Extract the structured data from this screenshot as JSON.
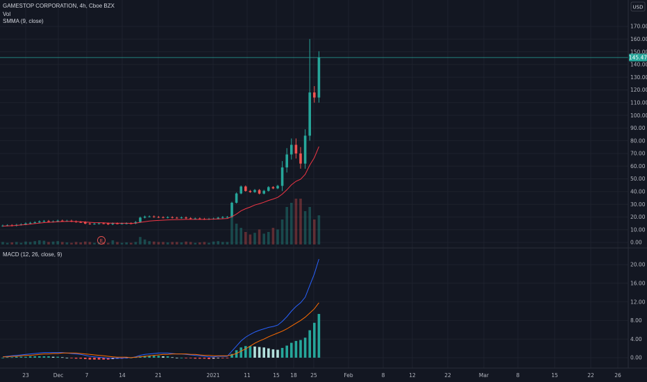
{
  "header": {
    "symbol_line": "GAMESTOP CORPORATION, 4h, Cboe BZX",
    "vol_label": "Vol",
    "smma_label": "SMMA (9, close)",
    "currency": "USD"
  },
  "macd_pane": {
    "label": "MACD (12, 26, close, 9)"
  },
  "earnings_marker": "E",
  "colors": {
    "background": "#131722",
    "grid": "#1e222d",
    "up": "#26a69a",
    "down": "#ef5350",
    "smma": "#f23645",
    "macd": "#2962ff",
    "signal": "#ff6d00",
    "price_line": "#26a69a"
  },
  "chart_data": {
    "type": "candlestick",
    "price_axis": {
      "ticks": [
        "0.00",
        "10.00",
        "20.00",
        "30.00",
        "40.00",
        "50.00",
        "60.00",
        "70.00",
        "80.00",
        "90.00",
        "100.00",
        "110.00",
        "120.00",
        "130.00",
        "140.00",
        "150.00",
        "160.00",
        "170.00"
      ],
      "range": [
        0,
        170
      ]
    },
    "last_price": "145.47",
    "macd_axis": {
      "ticks": [
        "0.00",
        "4.00",
        "8.00",
        "12.00",
        "16.00",
        "20.00"
      ],
      "range": [
        -1,
        22
      ]
    },
    "x_labels": [
      "23",
      "Dec",
      "7",
      "14",
      "21",
      "2021",
      "11",
      "15",
      "18",
      "25",
      "Feb",
      "8",
      "12",
      "22",
      "Mar",
      "8",
      "15",
      "22",
      "26"
    ],
    "candles_close": [
      13.2,
      13.5,
      13.1,
      13.8,
      14.2,
      14.9,
      15.4,
      15.8,
      16.5,
      16.8,
      16.2,
      16.5,
      17.1,
      16.8,
      17.0,
      16.5,
      16.0,
      15.9,
      14.8,
      14.5,
      14.7,
      15.0,
      14.9,
      14.2,
      14.9,
      14.8,
      14.8,
      15.0,
      14.9,
      16.0,
      19.5,
      20.3,
      20.4,
      20.0,
      19.8,
      19.5,
      19.8,
      19.4,
      19.3,
      19.6,
      19.0,
      18.6,
      18.8,
      18.5,
      18.3,
      18.5,
      18.7,
      19.4,
      19.9,
      20.0,
      31.2,
      38.5,
      44.0,
      40.5,
      39.6,
      41.2,
      38.4,
      40.6,
      43.5,
      42.5,
      44.5,
      59.0,
      69.2,
      76.8,
      70.0,
      62.0,
      84.0,
      118.0,
      114.0,
      145.47
    ],
    "smma_values": [
      12.8,
      13.0,
      13.1,
      13.4,
      13.7,
      14.0,
      14.4,
      14.8,
      15.2,
      15.6,
      15.8,
      16.0,
      16.3,
      16.4,
      16.5,
      16.5,
      16.4,
      16.3,
      16.0,
      15.8,
      15.6,
      15.5,
      15.4,
      15.2,
      15.2,
      15.1,
      15.1,
      15.1,
      15.0,
      15.2,
      15.8,
      16.3,
      16.8,
      17.1,
      17.3,
      17.5,
      17.7,
      17.8,
      17.9,
      18.0,
      18.1,
      18.1,
      18.1,
      18.1,
      18.1,
      18.2,
      18.3,
      18.4,
      18.6,
      18.8,
      20.2,
      22.3,
      24.8,
      26.5,
      27.8,
      29.4,
      30.4,
      31.6,
      33.0,
      34.1,
      35.4,
      38.0,
      41.4,
      45.3,
      48.1,
      49.7,
      53.5,
      60.8,
      66.7,
      75.4
    ],
    "volume_relative": [
      0.3,
      0.2,
      0.25,
      0.3,
      0.2,
      0.35,
      0.3,
      0.4,
      0.5,
      0.45,
      0.3,
      0.35,
      0.4,
      0.3,
      0.25,
      0.2,
      0.3,
      0.25,
      0.35,
      0.3,
      0.2,
      0.25,
      0.3,
      0.2,
      0.5,
      0.3,
      0.2,
      0.25,
      0.2,
      0.3,
      0.9,
      0.6,
      0.4,
      0.35,
      0.3,
      0.3,
      0.25,
      0.3,
      0.3,
      0.25,
      0.35,
      0.3,
      0.2,
      0.25,
      0.3,
      0.2,
      0.35,
      0.4,
      0.3,
      0.3,
      3.5,
      2.5,
      2.0,
      1.5,
      1.2,
      1.4,
      1.8,
      1.3,
      1.5,
      2.0,
      1.8,
      3.0,
      4.5,
      5.0,
      5.5,
      5.5,
      4.0,
      4.5,
      3.0,
      3.5
    ],
    "macd": [
      0.2,
      0.3,
      0.4,
      0.5,
      0.6,
      0.7,
      0.8,
      0.9,
      1.0,
      1.1,
      1.1,
      1.1,
      1.1,
      1.1,
      1.0,
      0.9,
      0.8,
      0.7,
      0.5,
      0.3,
      0.2,
      0.1,
      0.0,
      -0.1,
      -0.1,
      -0.1,
      -0.1,
      0.0,
      0.0,
      0.2,
      0.5,
      0.7,
      0.8,
      0.9,
      1.0,
      1.0,
      1.0,
      0.9,
      0.8,
      0.8,
      0.7,
      0.6,
      0.5,
      0.4,
      0.3,
      0.2,
      0.2,
      0.3,
      0.3,
      0.3,
      1.4,
      2.5,
      3.6,
      4.4,
      5.0,
      5.5,
      5.9,
      6.2,
      6.5,
      6.7,
      7.0,
      7.8,
      8.8,
      10.0,
      11.0,
      11.8,
      13.0,
      15.5,
      18.0,
      21.2
    ],
    "signal": [
      0.2,
      0.2,
      0.3,
      0.3,
      0.4,
      0.5,
      0.5,
      0.6,
      0.7,
      0.8,
      0.8,
      0.9,
      0.9,
      1.0,
      1.0,
      1.0,
      1.0,
      0.9,
      0.8,
      0.7,
      0.6,
      0.5,
      0.4,
      0.3,
      0.2,
      0.1,
      0.1,
      0.1,
      0.0,
      0.1,
      0.2,
      0.3,
      0.4,
      0.5,
      0.6,
      0.7,
      0.7,
      0.8,
      0.8,
      0.8,
      0.8,
      0.7,
      0.7,
      0.6,
      0.5,
      0.5,
      0.4,
      0.4,
      0.4,
      0.4,
      0.6,
      0.9,
      1.4,
      1.9,
      2.5,
      3.1,
      3.6,
      4.0,
      4.5,
      4.9,
      5.3,
      5.7,
      6.2,
      6.8,
      7.4,
      8.0,
      8.7,
      9.6,
      10.5,
      11.8
    ],
    "histogram": [
      0.0,
      0.1,
      0.1,
      0.2,
      0.2,
      0.2,
      0.3,
      0.3,
      0.3,
      0.3,
      0.3,
      0.2,
      0.2,
      0.1,
      0.0,
      -0.1,
      -0.2,
      -0.2,
      -0.3,
      -0.4,
      -0.4,
      -0.4,
      -0.4,
      -0.4,
      -0.3,
      -0.2,
      -0.2,
      -0.1,
      0.0,
      0.1,
      0.3,
      0.4,
      0.4,
      0.4,
      0.4,
      0.3,
      0.3,
      0.1,
      0.0,
      0.0,
      -0.1,
      -0.1,
      -0.2,
      -0.2,
      -0.2,
      -0.3,
      -0.2,
      -0.1,
      -0.1,
      -0.1,
      0.8,
      1.6,
      2.2,
      2.5,
      2.5,
      2.4,
      2.3,
      2.2,
      2.0,
      1.8,
      1.7,
      2.1,
      2.6,
      3.2,
      3.6,
      3.8,
      4.3,
      5.9,
      7.5,
      9.4
    ]
  }
}
